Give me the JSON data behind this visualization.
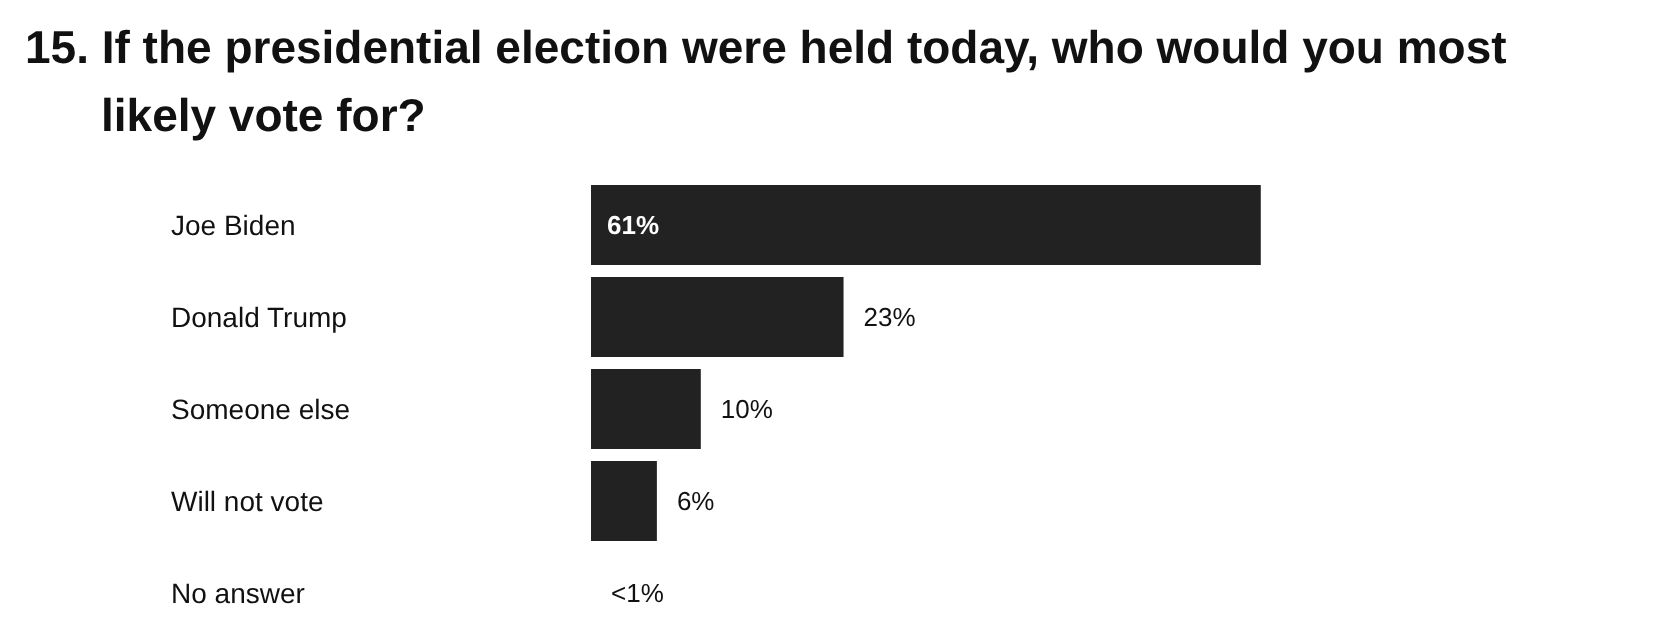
{
  "chart_data": {
    "type": "bar",
    "orientation": "horizontal",
    "title": "15. If the presidential election were held today, who would you most likely vote for?",
    "categories": [
      "Joe Biden",
      "Donald Trump",
      "Someone else",
      "Will not vote",
      "No answer"
    ],
    "values": [
      61,
      23,
      10,
      6,
      null
    ],
    "value_labels": [
      "61%",
      "23%",
      "10%",
      "6%",
      "<1%"
    ],
    "color": "#222222",
    "grid": false
  }
}
